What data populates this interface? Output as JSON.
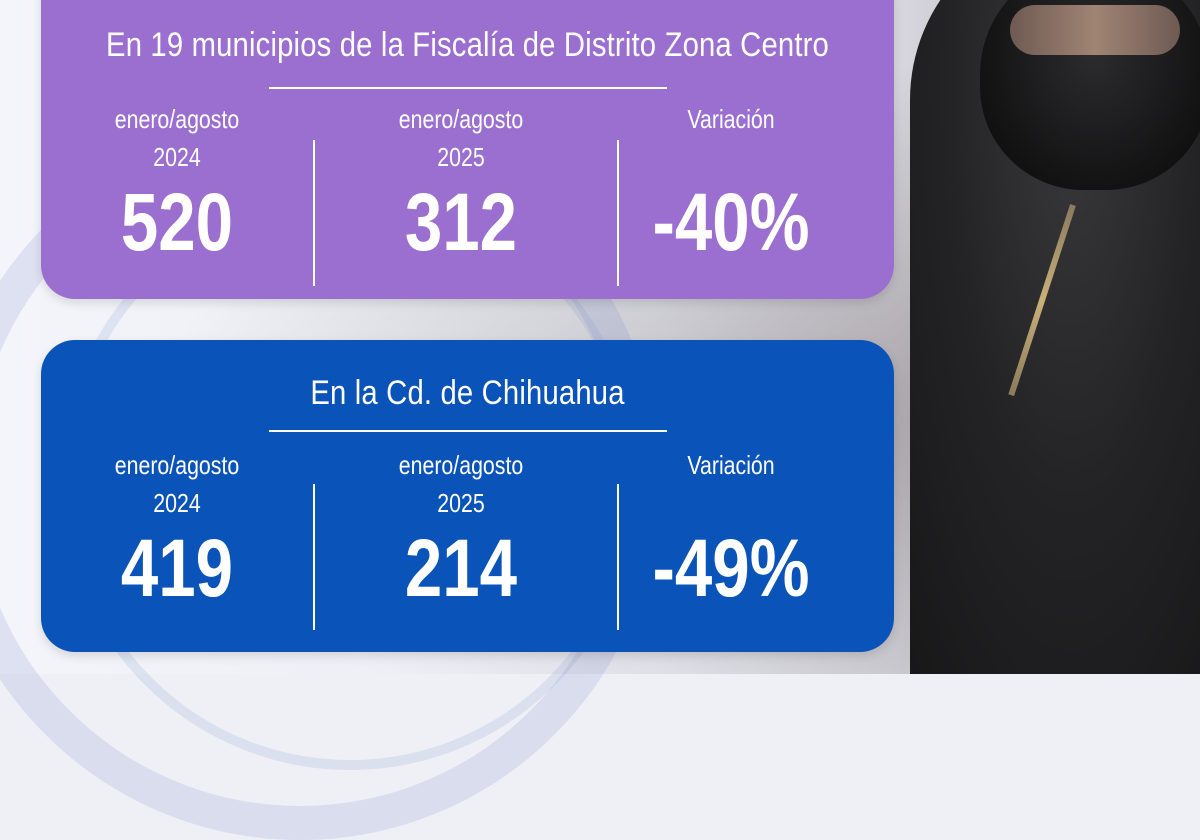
{
  "cards": [
    {
      "title": "En 19 municipios de la Fiscalía de Distrito Zona Centro",
      "color": "#9b6fd0",
      "columns": [
        {
          "period_line1": "enero/agosto",
          "period_line2": "2024",
          "value": "520"
        },
        {
          "period_line1": "enero/agosto",
          "period_line2": "2025",
          "value": "312"
        },
        {
          "period_line1": "Variación",
          "period_line2": "",
          "value": "-40%"
        }
      ]
    },
    {
      "title": "En la Cd. de Chihuahua",
      "color": "#0a53b8",
      "columns": [
        {
          "period_line1": "enero/agosto",
          "period_line2": "2024",
          "value": "419"
        },
        {
          "period_line1": "enero/agosto",
          "period_line2": "2025",
          "value": "214"
        },
        {
          "period_line1": "Variación",
          "period_line2": "",
          "value": "-49%"
        }
      ]
    }
  ]
}
